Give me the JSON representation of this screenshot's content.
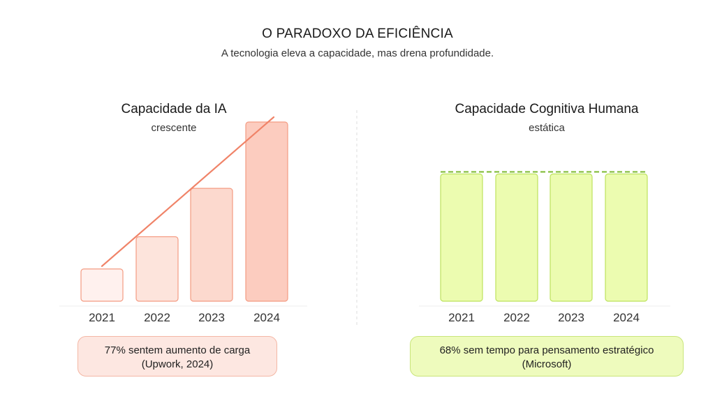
{
  "header": {
    "title": "O PARADOXO DA EFICIÊNCIA",
    "subtitle": "A tecnologia eleva a capacidade, mas drena profundidade."
  },
  "chart_data": [
    {
      "type": "bar",
      "title": "Capacidade da IA",
      "subtitle": "crescente",
      "categories": [
        "2021",
        "2022",
        "2023",
        "2024"
      ],
      "values": [
        18,
        36,
        63,
        100
      ],
      "ylim": [
        0,
        100
      ],
      "trend_line": true,
      "grid": false,
      "colors": {
        "fills": [
          "#fff1ee",
          "#fde4dc",
          "#fcd9ce",
          "#fcccbf"
        ],
        "stroke": "#f49b82",
        "trend": "#f08368"
      }
    },
    {
      "type": "bar",
      "title": "Capacidade Cognitiva Humana",
      "subtitle": "estática",
      "categories": [
        "2021",
        "2022",
        "2023",
        "2024"
      ],
      "values": [
        71,
        71,
        71,
        71
      ],
      "ylim": [
        0,
        100
      ],
      "reference_line": "dashed",
      "grid": false,
      "colors": {
        "fills": [
          "#ecfcb0",
          "#ecfcb0",
          "#ecfcb0",
          "#ecfcb0"
        ],
        "stroke": "#bde25e",
        "trend": "#7bb82e"
      }
    }
  ],
  "notes": {
    "left": {
      "line1": "77% sentem aumento de carga",
      "line2": "(Upwork, 2024)"
    },
    "right": {
      "line1": "68% sem tempo para pensamento estratégico",
      "line2": "(Microsoft)"
    }
  }
}
